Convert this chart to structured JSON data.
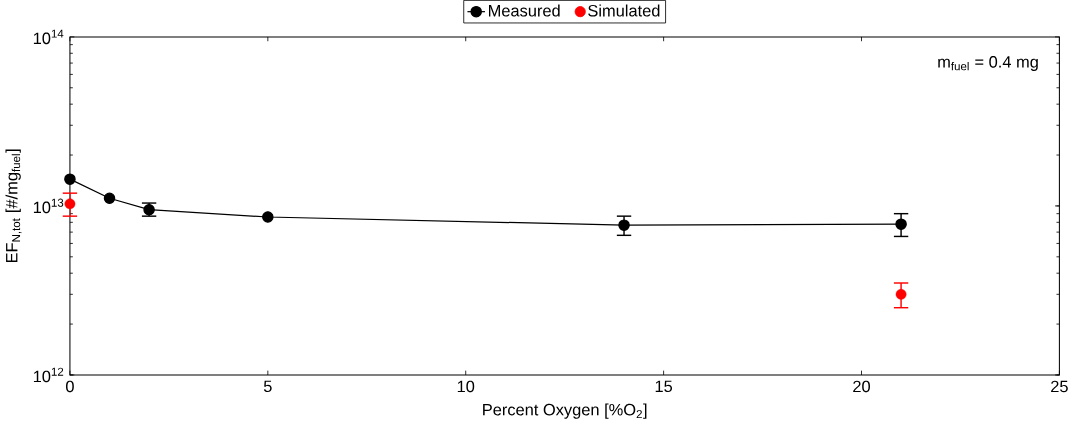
{
  "chart_data": {
    "type": "line",
    "xlabel": "Percent Oxygen [%O$_{2}$]",
    "ylabel": "EF$_{N,tot}$ [#/mg$_{fuel}$]",
    "annotations": [
      "m$_{fuel}$ = 0.4 mg"
    ],
    "log": "y",
    "legend": "top",
    "marker": "circle",
    "line_style": "solid",
    "xlim": [
      0,
      25
    ],
    "xticks": [
      0,
      5,
      10,
      15,
      20,
      25
    ],
    "ylim": [
      1000000000000.0,
      100000000000000.0
    ],
    "yticks": [
      {
        "value": 1000000000000.0,
        "label": "10$^{12}$"
      },
      {
        "value": 10000000000000.0,
        "label": "10$^{13}$"
      },
      {
        "value": 100000000000000.0,
        "label": "10$^{14}$"
      }
    ],
    "series": [
      {
        "name": "Measured",
        "color": "#000000",
        "x": [
          0,
          1,
          2,
          5,
          14,
          21
        ],
        "values": [
          14400000000000.0,
          11100000000000.0,
          9500000000000.0,
          8600000000000.0,
          7700000000000.0,
          7800000000000.0
        ],
        "errors": [
          null,
          null,
          [
            8700000000000.0,
            10400000000000.0
          ],
          null,
          [
            6700000000000.0,
            8700000000000.0
          ],
          [
            6600000000000.0,
            9000000000000.0
          ]
        ]
      },
      {
        "name": "Simulated",
        "type": "scatter",
        "color": "#ff0000",
        "x": [
          0,
          21
        ],
        "values": [
          10300000000000.0,
          3000000000000.0
        ],
        "errors": [
          [
            8700000000000.0,
            11900000000000.0
          ],
          [
            2500000000000.0,
            3500000000000.0
          ]
        ]
      }
    ]
  }
}
